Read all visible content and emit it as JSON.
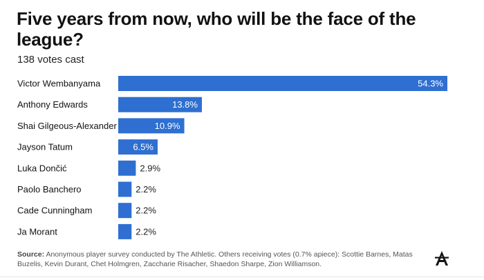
{
  "header": {
    "title": "Five years from now, who will be the face of the league?",
    "subtitle": "138 votes cast"
  },
  "chart_data": {
    "type": "bar",
    "orientation": "horizontal",
    "title": "Five years from now, who will be the face of the league?",
    "subtitle": "138 votes cast",
    "categories": [
      "Victor Wembanyama",
      "Anthony Edwards",
      "Shai Gilgeous-Alexander",
      "Jayson Tatum",
      "Luka Dončić",
      "Paolo Banchero",
      "Cade Cunningham",
      "Ja Morant"
    ],
    "values": [
      54.3,
      13.8,
      10.9,
      6.5,
      2.9,
      2.2,
      2.2,
      2.2
    ],
    "labels": [
      "54.3%",
      "13.8%",
      "10.9%",
      "6.5%",
      "2.9%",
      "2.2%",
      "2.2%",
      "2.2%"
    ],
    "xlim": [
      0,
      54.3
    ],
    "xlabel": "",
    "ylabel": "",
    "grid": false,
    "bar_color": "#2e6fd1"
  },
  "footer": {
    "source_label": "Source:",
    "source_text": "Anonymous player survey conducted by The Athletic. Others receiving votes (0.7% apiece): Scottie Barnes, Matas Buzelis, Kevin Durant, Chet Holmgren, Zaccharie Risacher, Shaedon Sharpe, Zion Williamson."
  },
  "logo": {
    "icon": "athletic-logo-icon"
  }
}
